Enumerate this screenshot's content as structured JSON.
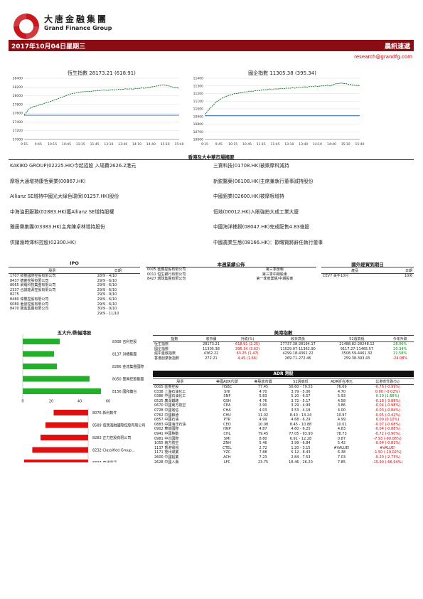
{
  "header": {
    "company_cn": "大唐金融集團",
    "company_en": "Grand Finance Group",
    "date": "2017年10月04日星期三",
    "report_name": "晨訊速遞",
    "email": "research@grandfg.com"
  },
  "hsi_chart": {
    "title": "恆生指數 28173.21 (618.91)",
    "y_ticks": [
      "28400",
      "28200",
      "28000",
      "27800",
      "27600",
      "27400",
      "27200",
      "27000"
    ],
    "x_ticks": [
      "9:15",
      "9:45",
      "10:15",
      "10:45",
      "11:15",
      "11:45",
      "13:10",
      "13:40",
      "14:10",
      "14:40",
      "15:10",
      "15:40"
    ],
    "ylim": [
      27000,
      28400
    ],
    "reference": 27554.3,
    "series": [
      27560,
      27620,
      27700,
      27730,
      27750,
      27760,
      27780,
      27800,
      27810,
      27830,
      27850,
      27860,
      27880,
      27900,
      27920,
      27940,
      27960,
      27980,
      28000,
      28020,
      28040,
      28050,
      28060,
      28070,
      28080,
      28090,
      28090,
      28100,
      28100,
      28100,
      28110,
      28110,
      28120,
      28120,
      28130,
      28130,
      28120,
      28130,
      28140,
      28130,
      28140,
      28150,
      28140,
      28150,
      28160,
      28150,
      28160,
      28150,
      28170,
      28160,
      28170,
      28180,
      28170,
      28180,
      28190,
      28200,
      28210,
      28220,
      28230,
      28240,
      28250,
      28240,
      28230,
      28220,
      28200,
      28190,
      28180,
      28175
    ]
  },
  "hscei_chart": {
    "title": "國企指數 11305.38 (395.34)",
    "y_ticks": [
      "11400",
      "11300",
      "11200",
      "11100",
      "11000",
      "10900",
      "10800",
      "10700",
      "10600"
    ],
    "x_ticks": [
      "9:15",
      "9:45",
      "10:15",
      "10:45",
      "11:15",
      "11:45",
      "13:10",
      "13:40",
      "14:10",
      "14:40",
      "15:10",
      "15:40"
    ],
    "ylim": [
      10600,
      11400
    ],
    "reference": 10910.04,
    "series": [
      10930,
      10960,
      11000,
      11030,
      11060,
      11090,
      11110,
      11130,
      11150,
      11160,
      11170,
      11180,
      11190,
      11200,
      11200,
      11210,
      11210,
      11220,
      11220,
      11230,
      11230,
      11230,
      11240,
      11240,
      11240,
      11250,
      11250,
      11250,
      11260,
      11250,
      11260,
      11260,
      11260,
      11270,
      11260,
      11270,
      11270,
      11270,
      11280,
      11270,
      11280,
      11280,
      11280,
      11290,
      11280,
      11290,
      11290,
      11290,
      11300,
      11290,
      11300,
      11300,
      11300,
      11310,
      11300,
      11310,
      11320,
      11330,
      11330,
      11340,
      11330,
      11330,
      11320,
      11320,
      11310,
      11310,
      11305,
      11305
    ]
  },
  "news": {
    "title": "香港及大中華市場摘要",
    "left": [
      "KAKIKO GROUP(02225.HK)今起招股 入場費2626.2港元",
      "摩根大通增持康哲藥業(00867.HK)",
      "Allianz SE增持中國光大綠色環保(01257.HK)股份",
      "中海油田服務(02883.HK)獲Allianz SE增持股權",
      "雅居樂集團(03383.HK)主席陳卓林增持股份",
      "供銷滙時澤科控股(02300.HK)"
    ],
    "right": [
      "三寶科技(01708.HK)被樂摩科減持",
      "新鋭醫藥(06108.HK)主席兼執行董事減持股份",
      "中國鋁業(02600.HK)被摩根增持",
      "恒地(00012.HK)入賬強拍大成工業大廈",
      "中國海洋捕撈(08047.HK)完成配售4.83億股",
      "中國農業生態(08166.HK)：歡曙賢將辭任執行董事"
    ]
  },
  "ipo": {
    "title": "IPO",
    "headers": [
      "股票",
      "日期"
    ],
    "rows": [
      [
        "1707 致豐國際控股有限公司",
        "28/9 - 4/10"
      ],
      [
        "8437 德萊控股有限公司",
        "29/9 - 6/10"
      ],
      [
        "8065 景羅科技集團有限公司",
        "29/9 - 6/10"
      ],
      [
        "2337 合誠能源控股有限公司",
        "29/9 - 6/10"
      ],
      [
        "8275",
        "29/9 - 9/10"
      ],
      [
        "8480 偉豐控股有限公司",
        "29/9 - 6/10"
      ],
      [
        "6080 滙發控股有限公司",
        "29/9 - 6/10"
      ],
      [
        "8470 寶進集團有限公司",
        "30/9 - 9/10"
      ],
      [
        "",
        "29/9 - 11/10"
      ]
    ]
  },
  "results": {
    "title": "本週業績公佈",
    "rows": [
      [
        "0005 匯豐控股有限公司",
        "第三季度報"
      ],
      [
        "0011 恒生銀行有限公司",
        "第三季中期股東"
      ],
      [
        "8427 環球集團有限公司",
        "第一季度業績/中期股東"
      ]
    ]
  },
  "economic": {
    "title": "國外經貿到期日",
    "headers": [
      "產品",
      "日期"
    ],
    "rows": [
      [
        "CEV7 黃牛10月",
        "10/6"
      ]
    ]
  },
  "movers": {
    "title": "五大升/跌幅港股",
    "up": [
      {
        "name": "8308 吉利控股",
        "value": 26
      },
      {
        "name": "8137 洪橋集團",
        "value": 22
      },
      {
        "name": "8266 金達集團國際",
        "value": 24
      },
      {
        "name": "8050 量興控股集團",
        "value": 47
      },
      {
        "name": "8156 國和藥台",
        "value": 55
      }
    ],
    "down": [
      {
        "name": "8076 新利軟件",
        "value": -21
      },
      {
        "name": "8589 佰潤海融國際控股有限公司",
        "value": -26
      },
      {
        "name": "8283 正力控股有限公司",
        "value": -29
      },
      {
        "name": "8232 Classified Group...",
        "value": -34
      },
      {
        "name": "8337 直通電訊",
        "value": -39
      }
    ],
    "axis": [
      "-45",
      "-40",
      "-35",
      "-30",
      "-25",
      "-20",
      "-15",
      "-10",
      "-5",
      "0"
    ],
    "up_axis": [
      "0",
      "20",
      "40",
      "60"
    ]
  },
  "indices": {
    "title": "美港指數",
    "headers": [
      "指數",
      "收市價",
      "升跌(%)",
      "收日高低",
      "52週高低",
      "今年升跌"
    ],
    "rows": [
      [
        "恆生指數",
        "28173.21",
        "618.91 (2.25)",
        "27737.38-28194.17",
        "21488.82-28248.12",
        "28.06%"
      ],
      [
        "國企指數",
        "11305.38",
        "395.34 (3.62)",
        "11029.07-11362.90",
        "9117.27-11465.57",
        "20.34%"
      ],
      [
        "滬中金融指數",
        "4362.22",
        "63.25 (1.47)",
        "4299.18-4362.22",
        "3508.59-4461.32",
        "21.58%"
      ],
      [
        "香港創業板指數",
        "272.21",
        "4.45 (1.66)",
        "269.71-272.46",
        "259.38-393.43",
        "-24.08%"
      ]
    ]
  },
  "adr": {
    "title": "ADR 港股",
    "headers": [
      "股票",
      "美國ADR代號",
      "美股收市價",
      "52週高低",
      "ADR折合港元",
      "比港市升跌(%)"
    ],
    "rows": [
      [
        "0005 匯豐控股",
        "HSBC",
        "77.45",
        "56.60 - 79.55",
        "76.69",
        "-0.76 (-0.99%)"
      ],
      [
        "0338 上海石油化工",
        "SHI",
        "4.70",
        "3.79 - 5.06",
        "4.70",
        "0.00 (-0.02%)"
      ],
      [
        "0386 中國石油化工",
        "SNP",
        "5.83",
        "5.20 - 6.57",
        "5.93",
        "0.10 (1.66%)"
      ],
      [
        "0525 廣深鐵路",
        "GSH",
        "4.76",
        "3.72 - 5.17",
        "4.58",
        "-0.18 (-3.88%)"
      ],
      [
        "0670 中國東方航空",
        "CEA",
        "3.90",
        "3.29 - 4.99",
        "3.86",
        "-0.04 (-0.98%)"
      ],
      [
        "0728 中國電信",
        "CHA",
        "4.03",
        "3.53 - 4.18",
        "4.00",
        "-0.03 (-0.84%)"
      ],
      [
        "0762 中國聯通",
        "CHU",
        "11.02",
        "8.40 - 13.24",
        "10.97",
        "-0.05 (-0.42%)"
      ],
      [
        "0857 中國石油",
        "PTR",
        "4.99",
        "4.68 - 6.29",
        "4.99",
        "0.00 (0.10%)"
      ],
      [
        "0883 中國海洋石油",
        "CEO",
        "10.08",
        "8.45 - 10.88",
        "10.01",
        "-0.07 (-0.68%)"
      ],
      [
        "0902 華能國際",
        "HNP",
        "4.87",
        "4.60 - 6.25",
        "4.83",
        "-0.04 (-0.88%)"
      ],
      [
        "0941 中國移動",
        "CHL",
        "79.45",
        "77.05 - 93.90",
        "78.73",
        "-0.72 (-0.90%)"
      ],
      [
        "0981 中芯國際",
        "SMI",
        "8.80",
        "6.91 - 12.28",
        "0.87",
        "-7.93 (-90.08%)"
      ],
      [
        "1055 南方航空",
        "ZNH",
        "5.46",
        "3.99 - 6.84",
        "5.42",
        "-0.04 (-0.81%)"
      ],
      [
        "1137 香港電視",
        "CTEL",
        "2.72",
        "1.20 - 3.15",
        "#VALUE!",
        "#VALUE!"
      ],
      [
        "1171 兗州煤業",
        "YZC",
        "7.88",
        "5.12 - 8.43",
        "6.38",
        "-1.50 (-19.02%)"
      ],
      [
        "2600 中國鋁業",
        "ACH",
        "7.23",
        "2.84 - 7.53",
        "7.03",
        "-0.20 (-2.73%)"
      ],
      [
        "2628 中國人壽",
        "LFC",
        "23.75",
        "18.46 - 26.20",
        "7.85",
        "-15.90 (-66.94%)"
      ]
    ]
  },
  "colors": {
    "brand_red": "#8b0d14",
    "line_green": "#1b7a2a",
    "ref_blue": "#3a6fc4",
    "up_green": "#22b02a",
    "down_red": "#e01010"
  }
}
